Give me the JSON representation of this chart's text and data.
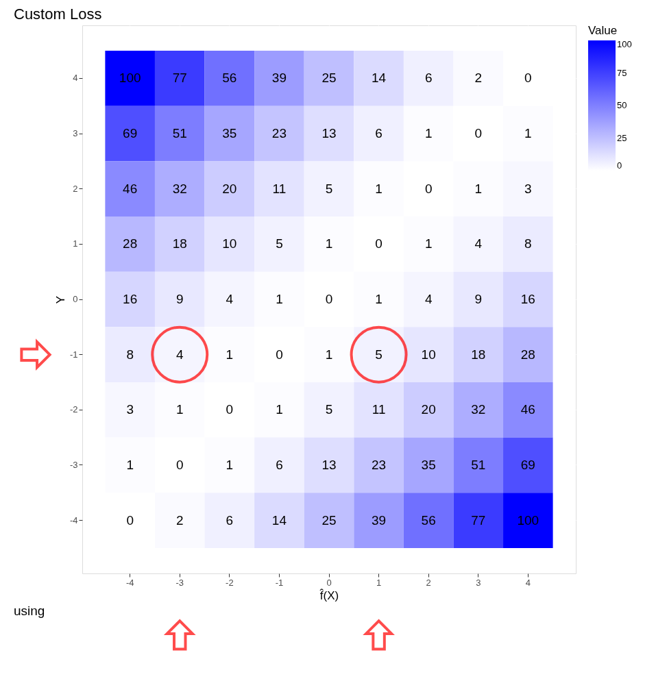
{
  "chart_data": {
    "type": "heatmap",
    "title": "Custom Loss",
    "xlabel": "f̂(X)",
    "ylabel": "Y",
    "legend_title": "Value",
    "categories": [
      "-4",
      "-3",
      "-2",
      "-1",
      "0",
      "1",
      "2",
      "3",
      "4"
    ],
    "y_categories": [
      "4",
      "3",
      "2",
      "1",
      "0",
      "-1",
      "-2",
      "-3",
      "-4"
    ],
    "cells": [
      [
        100,
        77,
        56,
        39,
        25,
        14,
        6,
        2,
        0
      ],
      [
        69,
        51,
        35,
        23,
        13,
        6,
        1,
        0,
        1
      ],
      [
        46,
        32,
        20,
        11,
        5,
        1,
        0,
        1,
        3
      ],
      [
        28,
        18,
        10,
        5,
        1,
        0,
        1,
        4,
        8
      ],
      [
        16,
        9,
        4,
        1,
        0,
        1,
        4,
        9,
        16
      ],
      [
        8,
        4,
        1,
        0,
        1,
        5,
        10,
        18,
        28
      ],
      [
        3,
        1,
        0,
        1,
        5,
        11,
        20,
        32,
        46
      ],
      [
        1,
        0,
        1,
        6,
        13,
        23,
        35,
        51,
        69
      ],
      [
        0,
        2,
        6,
        14,
        25,
        39,
        56,
        77,
        100
      ]
    ],
    "clim": [
      0,
      100
    ],
    "cticks": [
      0,
      25,
      50,
      75,
      100
    ],
    "colors": [
      "#ffffff",
      "#0000ff"
    ],
    "data_labels": true,
    "grid": true,
    "annotations": [
      "using"
    ]
  }
}
